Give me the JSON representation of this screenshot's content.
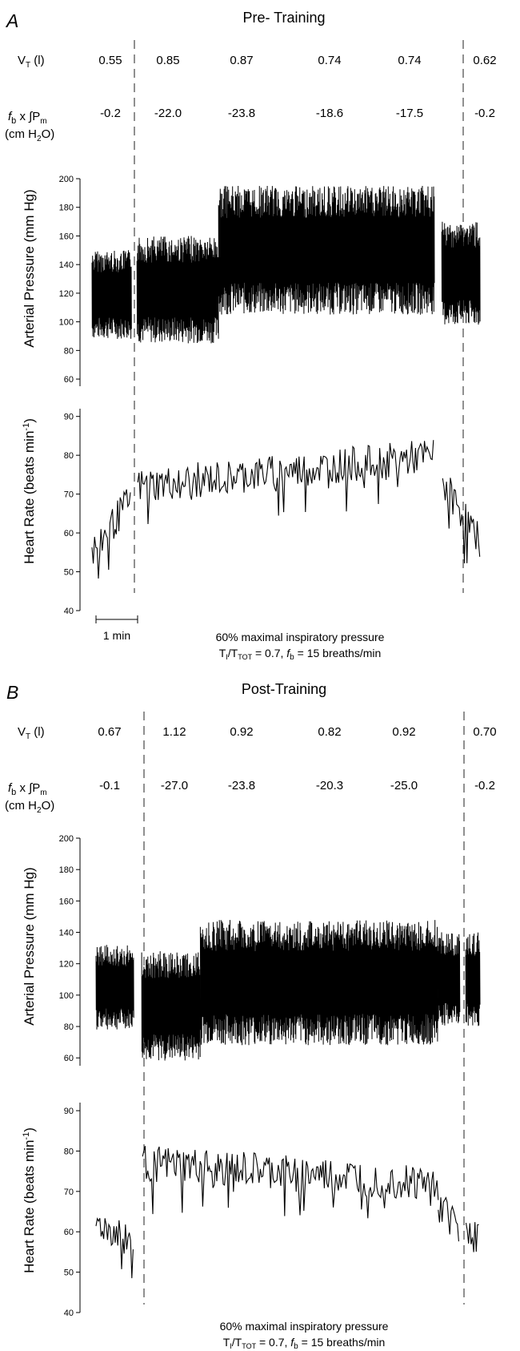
{
  "chart_data": [
    {
      "type": "line",
      "panel_letter": "A",
      "title": "Pre- Training",
      "rows": {
        "vt_label": "V",
        "vt_sub": "T",
        "vt_unit": " (l)",
        "vt_values": [
          "0.55",
          "0.85",
          "0.87",
          "0.74",
          "0.74",
          "0.62"
        ],
        "fb_label": "b",
        "fb_prefix": "f",
        "fb_times": " x ∫P",
        "fb_sub": "m",
        "fb_unit": "(cm H",
        "fb_unit_sub": "2",
        "fb_unit_end": "O)",
        "fb_values": [
          "-0.2",
          "-22.0",
          "-23.8",
          "-18.6",
          "-17.5",
          "-0.2"
        ]
      },
      "pressure": {
        "ylabel": "Arterial Pressure (mm Hg)",
        "ylim": [
          55,
          200
        ],
        "yticks": [
          "60",
          "80",
          "100",
          "120",
          "140",
          "160",
          "180",
          "200"
        ],
        "segments": [
          {
            "phase": "baseline",
            "x_min": [
              0,
              1
            ],
            "min": 88,
            "max": 150
          },
          {
            "phase": "load_early",
            "x_min": [
              1,
              3
            ],
            "min": 85,
            "max": 160
          },
          {
            "phase": "load_late",
            "x_min": [
              3,
              8.2
            ],
            "min": 105,
            "max": 195
          },
          {
            "phase": "recovery",
            "x_min": [
              8.2,
              9.2
            ],
            "min": 97,
            "max": 170
          }
        ]
      },
      "heart_rate": {
        "ylabel": "Heart Rate (beats min",
        "ylabel_sup": "-1",
        "ylabel_end": ")",
        "ylim": [
          40,
          92
        ],
        "yticks": [
          "40",
          "50",
          "60",
          "70",
          "80",
          "90"
        ],
        "segments": [
          {
            "phase": "baseline",
            "x_min": [
              0,
              1
            ],
            "start": 55,
            "end": 70
          },
          {
            "phase": "load",
            "x_min": [
              1,
              8.2
            ],
            "start": 72,
            "end": 80
          },
          {
            "phase": "recovery",
            "x_min": [
              8.2,
              9.2
            ],
            "start": 75,
            "end": 58
          }
        ]
      },
      "scale_bar": "1 min",
      "footer_line1": "60% maximal inspiratory pressure",
      "footer_ti": "T",
      "footer_ti_sub": "I",
      "footer_ttot": "/T",
      "footer_ttot_sub": "TOT",
      "footer_eq": " = 0.7, ",
      "footer_fb": "f",
      "footer_fb_sub": "b",
      "footer_end": " = 15 breaths/min"
    },
    {
      "type": "line",
      "panel_letter": "B",
      "title": "Post-Training",
      "rows": {
        "vt_label": "V",
        "vt_sub": "T",
        "vt_unit": " (l)",
        "vt_values": [
          "0.67",
          "1.12",
          "0.92",
          "0.82",
          "0.92",
          "0.70"
        ],
        "fb_label": "b",
        "fb_prefix": "f",
        "fb_times": " x ∫P",
        "fb_sub": "m",
        "fb_unit": "(cm H",
        "fb_unit_sub": "2",
        "fb_unit_end": "O)",
        "fb_values": [
          "-0.1",
          "-27.0",
          "-23.8",
          "-20.3",
          "-25.0",
          "-0.2"
        ]
      },
      "pressure": {
        "ylabel": "Arterial Pressure (mm Hg)",
        "ylim": [
          55,
          200
        ],
        "yticks": [
          "60",
          "80",
          "100",
          "120",
          "140",
          "160",
          "180",
          "200"
        ],
        "segments": [
          {
            "phase": "baseline",
            "x_min": [
              0,
              1
            ],
            "min": 78,
            "max": 132
          },
          {
            "phase": "load_early",
            "x_min": [
              1,
              2.5
            ],
            "min": 58,
            "max": 128
          },
          {
            "phase": "load_late",
            "x_min": [
              2.5,
              8.2
            ],
            "min": 68,
            "max": 148
          },
          {
            "phase": "recovery",
            "x_min": [
              8.2,
              9.2
            ],
            "min": 80,
            "max": 140
          }
        ]
      },
      "heart_rate": {
        "ylabel": "Heart Rate (beats min",
        "ylabel_sup": "-1",
        "ylabel_end": ")",
        "ylim": [
          40,
          92
        ],
        "yticks": [
          "40",
          "50",
          "60",
          "70",
          "80",
          "90"
        ],
        "segments": [
          {
            "phase": "baseline",
            "x_min": [
              0,
              1
            ],
            "start": 62,
            "end": 57
          },
          {
            "phase": "load",
            "x_min": [
              1,
              8.2
            ],
            "start": 77,
            "end": 72
          },
          {
            "phase": "recovery",
            "x_min": [
              8.2,
              9.2
            ],
            "start": 66,
            "end": 58
          }
        ]
      },
      "scale_bar": "",
      "footer_line1": "60% maximal inspiratory pressure",
      "footer_ti": "T",
      "footer_ti_sub": "I",
      "footer_ttot": "/T",
      "footer_ttot_sub": "TOT",
      "footer_eq": " = 0.7, ",
      "footer_fb": "f",
      "footer_fb_sub": "b",
      "footer_end": " = 15 breaths/min"
    }
  ]
}
